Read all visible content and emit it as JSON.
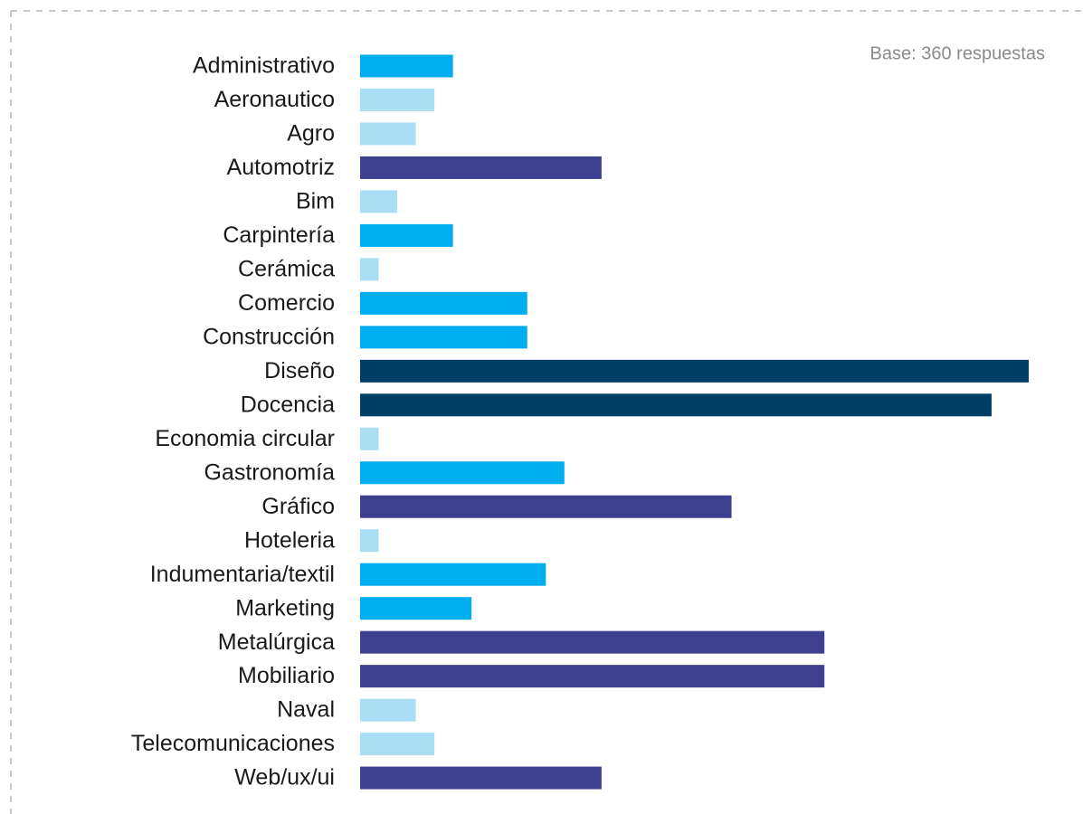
{
  "chart_data": {
    "type": "bar",
    "orientation": "horizontal",
    "annotation": "Base: 360 respuestas",
    "categories": [
      "Administrativo",
      "Aeronautico",
      "Agro",
      "Automotriz",
      "Bim",
      "Carpintería",
      "Cerámica",
      "Comercio",
      "Construcción",
      "Diseño",
      "Docencia",
      "Economia circular",
      "Gastronomía",
      "Gráfico",
      "Hoteleria",
      "Indumentaria/textil",
      "Marketing",
      "Metalúrgica",
      "Mobiliario",
      "Naval",
      "Telecomunicaciones",
      "Web/ux/ui"
    ],
    "values": [
      5,
      4,
      3,
      13,
      2,
      5,
      1,
      9,
      9,
      36,
      34,
      1,
      11,
      20,
      1,
      10,
      6,
      25,
      25,
      3,
      4,
      13
    ],
    "colors": [
      "#00aeef",
      "#a9def5",
      "#a9def5",
      "#3f3f8f",
      "#a9def5",
      "#00aeef",
      "#a9def5",
      "#00aeef",
      "#00aeef",
      "#003f66",
      "#003f66",
      "#a9def5",
      "#00aeef",
      "#3f3f8f",
      "#a9def5",
      "#00aeef",
      "#00aeef",
      "#3f3f8f",
      "#3f3f8f",
      "#a9def5",
      "#a9def5",
      "#3f3f8f"
    ]
  }
}
